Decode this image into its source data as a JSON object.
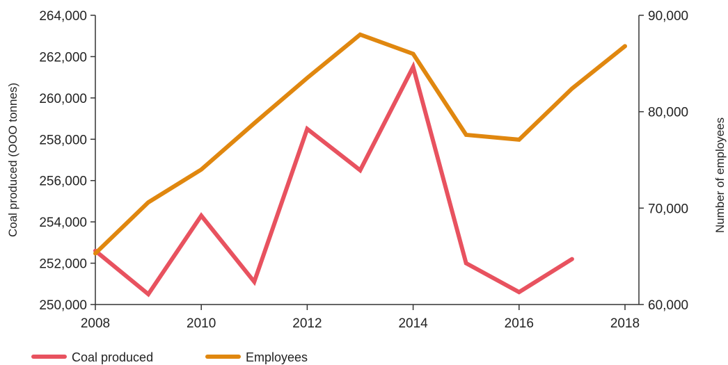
{
  "chart_data": {
    "type": "line",
    "x_ticks": [
      "2008",
      "2010",
      "2012",
      "2014",
      "2016",
      "2018"
    ],
    "xlim": [
      2008,
      2018
    ],
    "ylabel_left": "Coal produced (OOO tonnes)",
    "ylabel_right": "Number of employees",
    "ylim_left": [
      250000,
      264000
    ],
    "ylim_right": [
      60000,
      90000
    ],
    "y_ticks_left": [
      "264,000",
      "262,000",
      "260,000",
      "258,000",
      "256,000",
      "254,000",
      "252,000",
      "250,000"
    ],
    "y_ticks_left_values": [
      264000,
      262000,
      260000,
      258000,
      256000,
      254000,
      252000,
      250000
    ],
    "y_ticks_right": [
      "90,000",
      "80,000",
      "70,000",
      "60,000"
    ],
    "y_ticks_right_values": [
      90000,
      80000,
      70000,
      60000
    ],
    "grid": false,
    "legend_placement": "bottom-left",
    "series": [
      {
        "name": "Coal produced",
        "axis": "left",
        "color": "#e8525f",
        "x": [
          2008,
          2009,
          2010,
          2011,
          2012,
          2013,
          2014,
          2015,
          2016,
          2017
        ],
        "values": [
          252600,
          250500,
          254300,
          251100,
          258500,
          256500,
          261500,
          252000,
          250600,
          252200
        ]
      },
      {
        "name": "Employees",
        "axis": "right",
        "color": "#e0870f",
        "x": [
          2008,
          2009,
          2010,
          2011,
          2012,
          2013,
          2014,
          2015,
          2016,
          2017,
          2018
        ],
        "values": [
          65300,
          70600,
          74000,
          78800,
          83500,
          88000,
          86000,
          77600,
          77100,
          82400,
          86800
        ]
      }
    ]
  }
}
